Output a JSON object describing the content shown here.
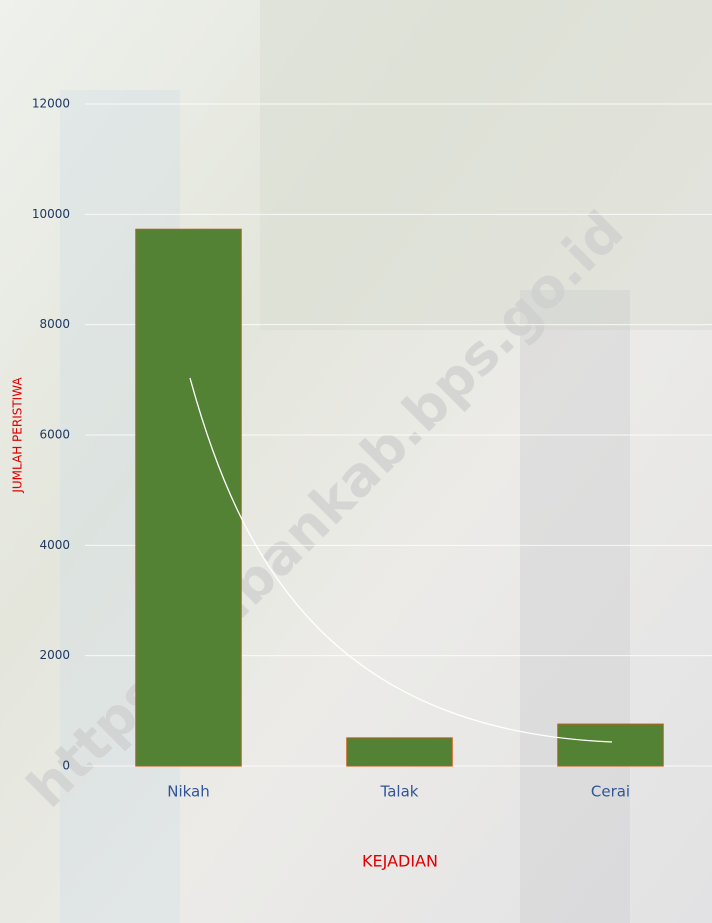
{
  "chart_data": {
    "type": "bar",
    "categories": [
      "Nikah",
      "Talak",
      "Cerai"
    ],
    "values": [
      9730,
      510,
      760
    ],
    "color": "#548235",
    "ylim": [
      0,
      12000
    ],
    "yticks": [
      0,
      2000,
      4000,
      6000,
      8000,
      10000,
      12000
    ],
    "grid": true,
    "x_label": "KEJADIAN",
    "y_label": "JUMLAH PERISTIWA",
    "watermark": "https://tubankab.bps.go.id"
  }
}
